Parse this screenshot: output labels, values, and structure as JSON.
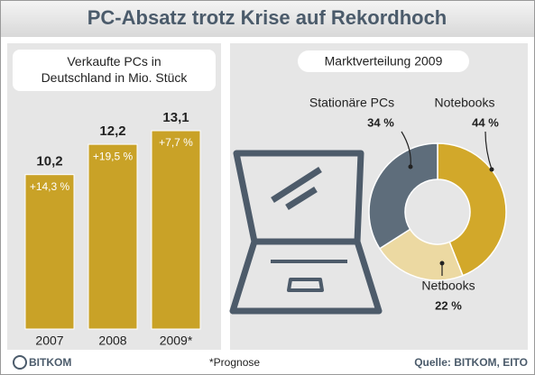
{
  "title": "PC-Absatz trotz Krise auf Rekordhoch",
  "footnote": "*Prognose",
  "source": "Quelle: BITKOM, EITO",
  "logo": "BITKOM",
  "chart_data": [
    {
      "type": "bar",
      "title": "Verkaufte PCs in Deutschland in Mio. Stück",
      "categories": [
        "2007",
        "2008",
        "2009*"
      ],
      "values": [
        10.2,
        12.2,
        13.1
      ],
      "value_labels": [
        "10,2",
        "12,2",
        "13,1"
      ],
      "annotations": [
        "+14,3 %",
        "+19,5 %",
        "+7,7 %"
      ],
      "color": "#c9a227"
    },
    {
      "type": "pie",
      "title": "Marktverteilung 2009",
      "categories": [
        "Notebooks",
        "Netbooks",
        "Stationäre PCs"
      ],
      "values": [
        44,
        22,
        34
      ],
      "value_labels": [
        "44 %",
        "22 %",
        "34 %"
      ],
      "colors": [
        "#d2a82a",
        "#ecd9a2",
        "#5e6d7b"
      ]
    }
  ]
}
